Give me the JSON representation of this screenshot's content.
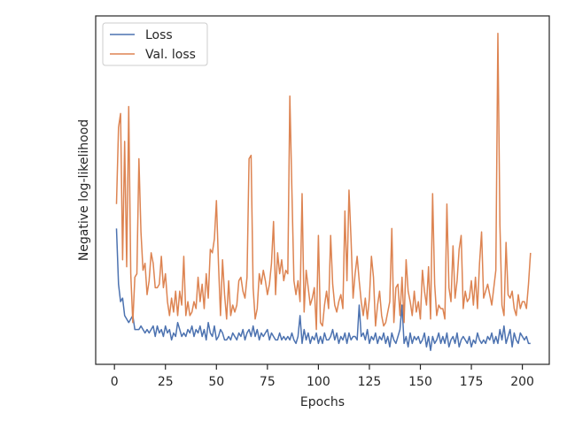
{
  "chart_data": {
    "type": "line",
    "xlabel": "Epochs",
    "ylabel": "Negative log-likelihood",
    "xlim": [
      -9.2,
      213.2
    ],
    "ylim": [
      0,
      100
    ],
    "xticks": [
      0,
      25,
      50,
      75,
      100,
      125,
      150,
      175,
      200
    ],
    "legend": "upper left",
    "x": [
      1,
      2,
      3,
      4,
      5,
      6,
      7,
      8,
      9,
      10,
      11,
      12,
      13,
      14,
      15,
      16,
      17,
      18,
      19,
      20,
      21,
      22,
      23,
      24,
      25,
      26,
      27,
      28,
      29,
      30,
      31,
      32,
      33,
      34,
      35,
      36,
      37,
      38,
      39,
      40,
      41,
      42,
      43,
      44,
      45,
      46,
      47,
      48,
      49,
      50,
      51,
      52,
      53,
      54,
      55,
      56,
      57,
      58,
      59,
      60,
      61,
      62,
      63,
      64,
      65,
      66,
      67,
      68,
      69,
      70,
      71,
      72,
      73,
      74,
      75,
      76,
      77,
      78,
      79,
      80,
      81,
      82,
      83,
      84,
      85,
      86,
      87,
      88,
      89,
      90,
      91,
      92,
      93,
      94,
      95,
      96,
      97,
      98,
      99,
      100,
      101,
      102,
      103,
      104,
      105,
      106,
      107,
      108,
      109,
      110,
      111,
      112,
      113,
      114,
      115,
      116,
      117,
      118,
      119,
      120,
      121,
      122,
      123,
      124,
      125,
      126,
      127,
      128,
      129,
      130,
      131,
      132,
      133,
      134,
      135,
      136,
      137,
      138,
      139,
      140,
      141,
      142,
      143,
      144,
      145,
      146,
      147,
      148,
      149,
      150,
      151,
      152,
      153,
      154,
      155,
      156,
      157,
      158,
      159,
      160,
      161,
      162,
      163,
      164,
      165,
      166,
      167,
      168,
      169,
      170,
      171,
      172,
      173,
      174,
      175,
      176,
      177,
      178,
      179,
      180,
      181,
      182,
      183,
      184,
      185,
      186,
      187,
      188,
      189,
      190,
      191,
      192,
      193,
      194,
      195,
      196,
      197,
      198,
      199,
      200,
      201,
      202,
      203,
      204
    ],
    "series": [
      {
        "name": "Loss",
        "color": "#4c72b0",
        "values": [
          39,
          23,
          18,
          19,
          14,
          13,
          12,
          13,
          14,
          10,
          10,
          10,
          11,
          10,
          9,
          10,
          9,
          10,
          11,
          8,
          11,
          9,
          10,
          8,
          11,
          9,
          10,
          7,
          9,
          8,
          12,
          10,
          8,
          9,
          8,
          10,
          9,
          11,
          8,
          10,
          9,
          11,
          8,
          10,
          7,
          12,
          9,
          8,
          11,
          7,
          8,
          10,
          9,
          7,
          7,
          8,
          7,
          9,
          8,
          7,
          9,
          8,
          10,
          7,
          9,
          10,
          8,
          11,
          8,
          10,
          7,
          9,
          8,
          9,
          10,
          7,
          9,
          8,
          7,
          7,
          9,
          7,
          8,
          7,
          8,
          7,
          9,
          7,
          6,
          8,
          14,
          6,
          10,
          7,
          9,
          6,
          8,
          7,
          9,
          6,
          8,
          6,
          9,
          7,
          7,
          8,
          10,
          7,
          9,
          6,
          8,
          7,
          9,
          6,
          9,
          7,
          8,
          8,
          7,
          17,
          8,
          9,
          7,
          10,
          6,
          8,
          7,
          9,
          6,
          8,
          7,
          9,
          6,
          8,
          5,
          9,
          7,
          6,
          8,
          10,
          17,
          6,
          8,
          5,
          9,
          6,
          8,
          7,
          8,
          6,
          7,
          9,
          5,
          8,
          4,
          8,
          6,
          7,
          9,
          6,
          8,
          6,
          9,
          5,
          7,
          8,
          6,
          9,
          5,
          7,
          8,
          7,
          6,
          8,
          5,
          7,
          6,
          9,
          7,
          6,
          7,
          6,
          8,
          7,
          9,
          6,
          8,
          6,
          10,
          7,
          11,
          6,
          8,
          10,
          5,
          9,
          7,
          6,
          9,
          8,
          7,
          8,
          6,
          6
        ]
      },
      {
        "name": "Val. loss",
        "color": "#dd8452",
        "values": [
          46,
          68,
          72,
          30,
          64,
          28,
          74,
          26,
          12,
          25,
          26,
          59,
          38,
          27,
          29,
          20,
          24,
          32,
          29,
          22,
          22,
          23,
          31,
          22,
          26,
          18,
          14,
          19,
          15,
          21,
          14,
          21,
          17,
          31,
          14,
          18,
          14,
          15,
          18,
          16,
          25,
          18,
          23,
          16,
          26,
          19,
          33,
          32,
          36,
          47,
          29,
          14,
          30,
          20,
          13,
          24,
          14,
          17,
          15,
          17,
          24,
          25,
          21,
          19,
          25,
          59,
          60,
          22,
          13,
          16,
          26,
          23,
          27,
          24,
          20,
          23,
          29,
          41,
          20,
          32,
          26,
          30,
          24,
          27,
          26,
          77,
          50,
          24,
          20,
          24,
          18,
          49,
          15,
          27,
          22,
          17,
          19,
          22,
          10,
          37,
          12,
          11,
          17,
          21,
          16,
          37,
          23,
          17,
          15,
          18,
          20,
          16,
          44,
          24,
          50,
          36,
          19,
          26,
          31,
          24,
          18,
          14,
          19,
          13,
          19,
          31,
          25,
          11,
          17,
          21,
          14,
          11,
          12,
          15,
          18,
          39,
          12,
          22,
          23,
          14,
          25,
          12,
          30,
          21,
          18,
          14,
          21,
          15,
          18,
          13,
          27,
          21,
          17,
          28,
          13,
          49,
          23,
          14,
          17,
          16,
          16,
          13,
          46,
          22,
          18,
          34,
          19,
          24,
          33,
          37,
          16,
          21,
          18,
          19,
          24,
          17,
          25,
          16,
          29,
          38,
          19,
          21,
          23,
          20,
          17,
          22,
          27,
          95,
          40,
          17,
          14,
          35,
          20,
          19,
          21,
          16,
          14,
          20,
          16,
          18,
          18,
          16,
          23,
          32
        ]
      }
    ]
  }
}
